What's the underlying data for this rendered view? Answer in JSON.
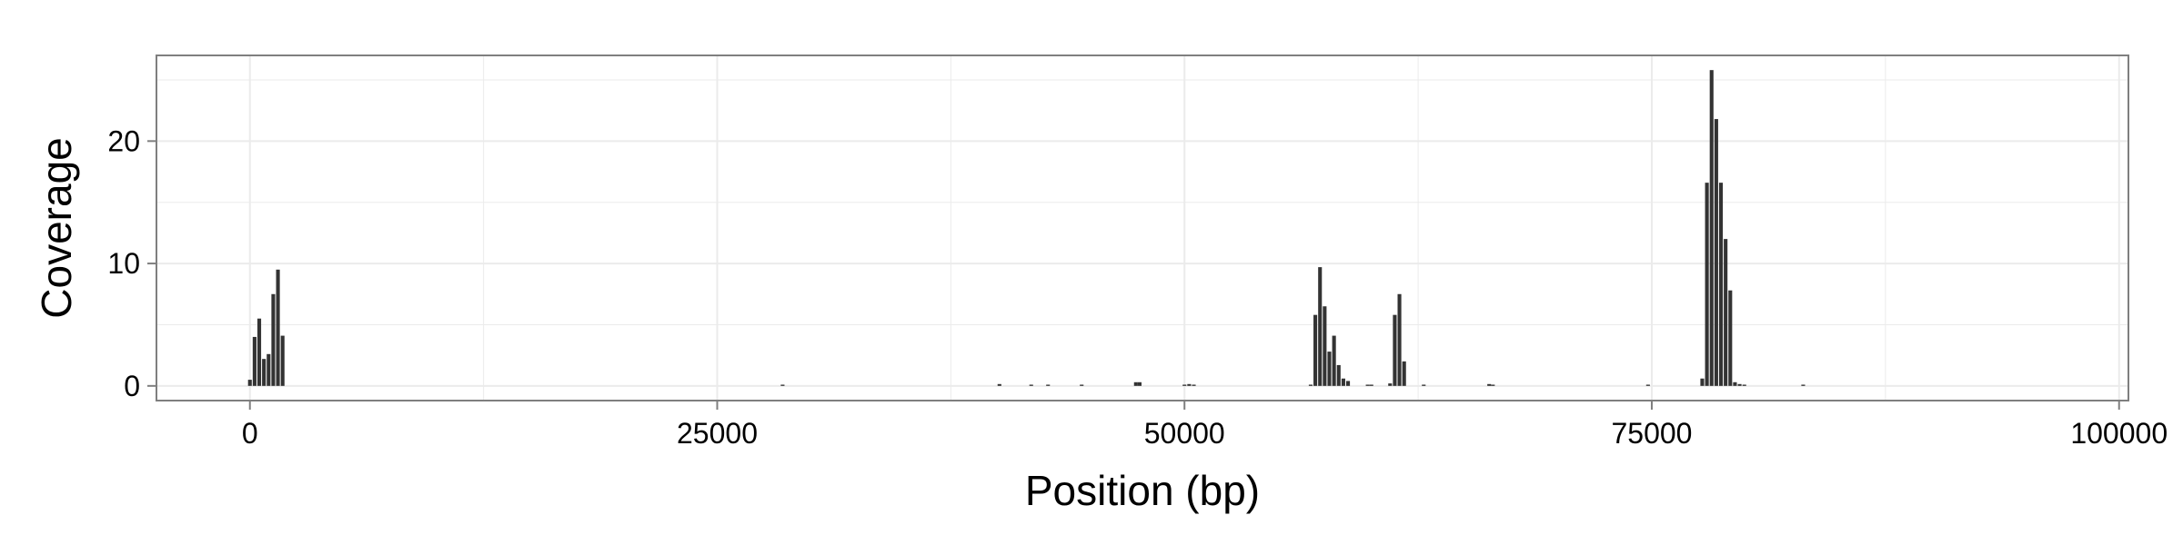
{
  "chart_data": {
    "type": "bar",
    "title": "",
    "xlabel": "Position (bp)",
    "ylabel": "Coverage",
    "xlim": [
      -5000,
      100500
    ],
    "ylim": [
      -1.2,
      27
    ],
    "x_ticks": [
      0,
      25000,
      50000,
      75000,
      100000
    ],
    "x_tick_labels": [
      "0",
      "25000",
      "50000",
      "75000",
      "100000"
    ],
    "y_ticks": [
      0,
      10,
      20
    ],
    "y_tick_labels": [
      "0",
      "10",
      "20"
    ],
    "grid": true,
    "legend": "none",
    "bar_width": 200,
    "bar_color": "#333333",
    "panel_background": "#ffffff",
    "grid_color": "#ebebeb",
    "border_color": "#7f7f7f",
    "series": [
      {
        "x": [
          0,
          250,
          500,
          750,
          1000,
          1250,
          1500,
          1750,
          28500,
          40100,
          41800,
          42700,
          44500,
          47400,
          47600,
          50000,
          50250,
          50500,
          56750,
          57000,
          57250,
          57500,
          57750,
          58000,
          58250,
          58500,
          58750,
          59800,
          60000,
          61000,
          61250,
          61500,
          61750,
          62800,
          66300,
          66500,
          74800,
          77700,
          77950,
          78200,
          78450,
          78700,
          78950,
          79200,
          79450,
          79700,
          79950,
          83100
        ],
        "values": [
          0.5,
          4.0,
          5.5,
          2.2,
          2.6,
          7.5,
          9.5,
          4.1,
          0.1,
          0.15,
          0.1,
          0.1,
          0.1,
          0.3,
          0.3,
          0.1,
          0.15,
          0.1,
          0.1,
          5.8,
          9.7,
          6.5,
          2.8,
          4.1,
          1.7,
          0.6,
          0.4,
          0.1,
          0.1,
          0.2,
          5.8,
          7.5,
          2.0,
          0.1,
          0.15,
          0.1,
          0.1,
          0.6,
          16.6,
          25.8,
          21.8,
          16.6,
          12.0,
          7.8,
          0.3,
          0.15,
          0.1,
          0.1
        ]
      }
    ]
  }
}
